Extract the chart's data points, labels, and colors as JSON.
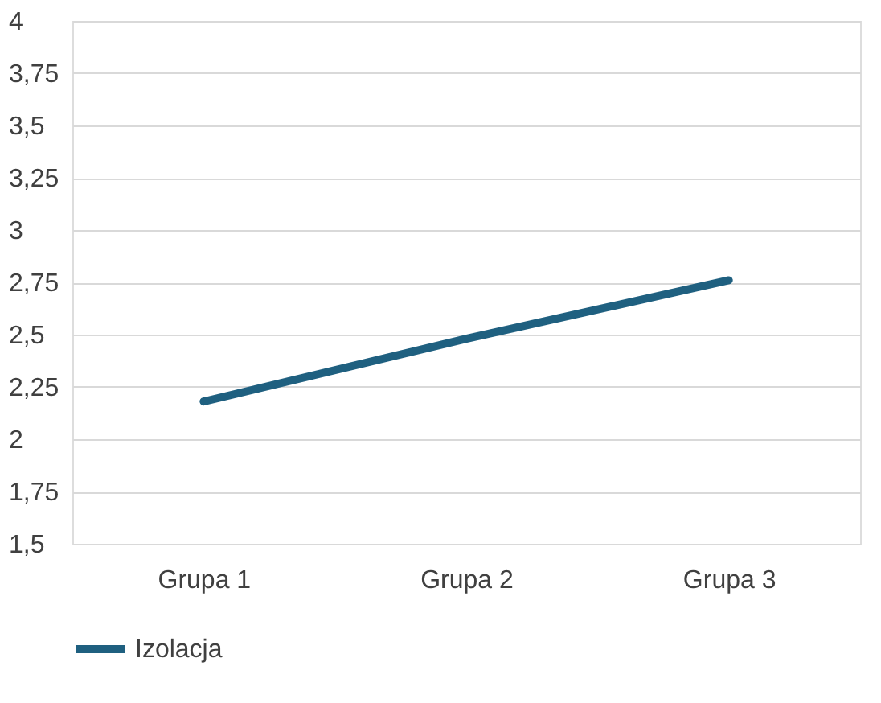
{
  "chart_data": {
    "type": "line",
    "categories": [
      "Grupa 1",
      "Grupa 2",
      "Grupa 3"
    ],
    "series": [
      {
        "name": "Izolacja",
        "color": "#1f6080",
        "values": [
          2.18,
          2.48,
          2.76
        ]
      }
    ],
    "ylim": [
      1.5,
      4
    ],
    "yticks": [
      {
        "value": 1.5,
        "label": "1,5"
      },
      {
        "value": 1.75,
        "label": "1,75"
      },
      2,
      {
        "value": 2.25,
        "label": "2,25"
      },
      {
        "value": 2.5,
        "label": "2,5"
      },
      {
        "value": 2.75,
        "label": "2,75"
      },
      3,
      {
        "value": 3.25,
        "label": "3,25"
      },
      {
        "value": 3.5,
        "label": "3,5"
      },
      {
        "value": 3.75,
        "label": "3,75"
      },
      4
    ],
    "grid": "y",
    "legend": "bottom",
    "marker": "none",
    "line_style": "solid"
  }
}
